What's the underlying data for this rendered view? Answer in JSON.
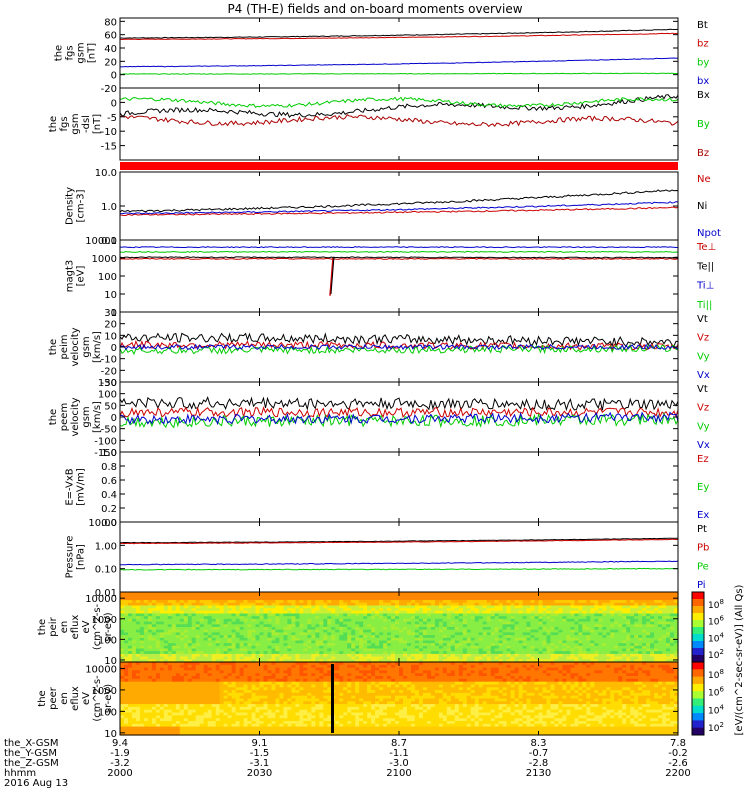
{
  "chart_data": {
    "title": "P4 (TH-E) fields and on-board moments overview",
    "x_ticks": {
      "hhmm": [
        "2000",
        "2030",
        "2100",
        "2130",
        "2200"
      ],
      "the_X-GSM": [
        "9.4",
        "9.1",
        "8.7",
        "8.3",
        "7.8"
      ],
      "the_Y-GSM": [
        "-1.9",
        "-1.5",
        "-1.1",
        "-0.7",
        "-0.2"
      ],
      "the_Z-GSM": [
        "-3.2",
        "-3.1",
        "-3.0",
        "-2.8",
        "-2.6"
      ]
    },
    "footer_labels": [
      "the_X-GSM",
      "the_Y-GSM",
      "the_Z-GSM",
      "hhmm",
      "2016 Aug 13"
    ],
    "panels": [
      {
        "type": "line",
        "ylabel": [
          "the",
          "fgs",
          "gsm",
          "[nT]"
        ],
        "ylim": [
          -20,
          85
        ],
        "yticks": [
          "80",
          "60",
          "40",
          "20",
          "0",
          "-20"
        ],
        "ytick_values": [
          80,
          60,
          40,
          20,
          0,
          -20
        ],
        "log": false,
        "series": [
          {
            "name": "Bt",
            "color": "#000000",
            "start": 55,
            "end": 68,
            "noise": 0.5
          },
          {
            "name": "bz",
            "color": "#cc0000",
            "start": 53,
            "end": 62,
            "noise": 0.4
          },
          {
            "name": "by",
            "color": "#00cc00",
            "start": 1,
            "end": 2,
            "noise": 0.4
          },
          {
            "name": "bx",
            "color": "#0000cc",
            "start": 12,
            "end": 25,
            "noise": 0.4
          }
        ]
      },
      {
        "type": "line",
        "ylabel": [
          "the",
          "fgs",
          "gsm",
          "-dsl",
          "[nT]"
        ],
        "ylim": [
          -20,
          5
        ],
        "yticks": [
          "0",
          "-5",
          "-10",
          "-15"
        ],
        "ytick_values": [
          0,
          -5,
          -10,
          -15
        ],
        "log": false,
        "series": [
          {
            "name": "Bx",
            "color": "#000000",
            "start": -4,
            "end": 1,
            "noise": 0.8
          },
          {
            "name": "By",
            "color": "#00cc00",
            "start": 0,
            "end": 0,
            "noise": 0.6
          },
          {
            "name": "Bz",
            "color": "#aa0000",
            "start": -6,
            "end": -7,
            "noise": 0.8
          }
        ]
      },
      {
        "type": "line",
        "ylabel": [
          "Density",
          "[cm-3]"
        ],
        "ylim_log": [
          -1,
          1
        ],
        "yticks": [
          "10.0",
          "1.0",
          "0.1"
        ],
        "ytick_values": [
          10,
          1,
          0.1
        ],
        "log": true,
        "series": [
          {
            "name": "Ne",
            "color": "#cc0000",
            "start": 0.55,
            "end": 0.9,
            "noise": 0.04
          },
          {
            "name": "Ni",
            "color": "#000000",
            "start": 0.7,
            "end": 3.0,
            "noise": 0.06
          },
          {
            "name": "Npot",
            "color": "#0000cc",
            "start": 0.6,
            "end": 1.3,
            "noise": 0.04
          }
        ]
      },
      {
        "type": "line",
        "ylabel": [
          "magt3",
          "[eV]"
        ],
        "ylim_log": [
          0,
          4
        ],
        "yticks": [
          "10000",
          "1000",
          "100",
          "10",
          "1"
        ],
        "ytick_values": [
          10000,
          1000,
          100,
          10,
          1
        ],
        "log": true,
        "series": [
          {
            "name": "Te⊥",
            "color": "#cc0000",
            "start": 900,
            "end": 900,
            "noise": 0.05
          },
          {
            "name": "Te||",
            "color": "#000000",
            "start": 1100,
            "end": 1050,
            "noise": 0.05
          },
          {
            "name": "Ti⊥",
            "color": "#0000cc",
            "start": 4000,
            "end": 4000,
            "noise": 0.05
          },
          {
            "name": "Ti||",
            "color": "#00cc00",
            "start": 2200,
            "end": 2200,
            "noise": 0.05
          }
        ]
      },
      {
        "type": "line",
        "ylabel": [
          "the",
          "peim",
          "velocity",
          "gsm",
          "[km/s]"
        ],
        "ylim": [
          -30,
          30
        ],
        "yticks": [
          "30",
          "20",
          "10",
          "0",
          "-10",
          "-20",
          "-30"
        ],
        "ytick_values": [
          30,
          20,
          10,
          0,
          -10,
          -20,
          -30
        ],
        "log": false,
        "series": [
          {
            "name": "Vt",
            "color": "#000000",
            "start": 8,
            "end": 4,
            "noise": 4
          },
          {
            "name": "Vz",
            "color": "#cc0000",
            "start": 2,
            "end": 0,
            "noise": 3
          },
          {
            "name": "Vy",
            "color": "#00cc00",
            "start": -3,
            "end": -1,
            "noise": 3
          },
          {
            "name": "Vx",
            "color": "#0000cc",
            "start": 0,
            "end": 0,
            "noise": 2
          }
        ]
      },
      {
        "type": "line",
        "ylabel": [
          "the",
          "peem",
          "velocity",
          "gsm",
          "[km/s]"
        ],
        "ylim": [
          -150,
          150
        ],
        "yticks": [
          "150",
          "100",
          "50",
          "0",
          "-50",
          "-100",
          "-150"
        ],
        "ytick_values": [
          150,
          100,
          50,
          0,
          -50,
          -100,
          -150
        ],
        "log": false,
        "series": [
          {
            "name": "Vt",
            "color": "#000000",
            "start": 60,
            "end": 50,
            "noise": 25
          },
          {
            "name": "Vz",
            "color": "#cc0000",
            "start": 20,
            "end": 20,
            "noise": 20
          },
          {
            "name": "Vy",
            "color": "#00cc00",
            "start": -20,
            "end": -10,
            "noise": 25
          },
          {
            "name": "Vx",
            "color": "#0000cc",
            "start": -10,
            "end": 0,
            "noise": 20
          }
        ]
      },
      {
        "type": "line",
        "ylabel": [
          "E=-VxB",
          "[mV/m]"
        ],
        "ylim": [
          0,
          1
        ],
        "yticks": [
          "1.0",
          "0.8",
          "0.6",
          "0.4",
          "0.2",
          "0.0"
        ],
        "ytick_values": [
          1,
          0.8,
          0.6,
          0.4,
          0.2,
          0
        ],
        "log": false,
        "series": [
          {
            "name": "Ez",
            "color": "#cc0000",
            "values": []
          },
          {
            "name": "Ey",
            "color": "#00cc00",
            "values": []
          },
          {
            "name": "Ex",
            "color": "#0000cc",
            "values": []
          }
        ]
      },
      {
        "type": "line",
        "ylabel": [
          "Pressure",
          "[nPa]"
        ],
        "ylim_log": [
          -2,
          1
        ],
        "yticks": [
          "10.00",
          "1.00",
          "0.10",
          "0.01"
        ],
        "ytick_values": [
          10,
          1,
          0.1,
          0.01
        ],
        "log": true,
        "series": [
          {
            "name": "Pt",
            "color": "#000000",
            "start": 1.3,
            "end": 2.0,
            "noise": 0.02
          },
          {
            "name": "Pb",
            "color": "#cc0000",
            "start": 1.2,
            "end": 1.8,
            "noise": 0.02
          },
          {
            "name": "Pe",
            "color": "#00cc00",
            "start": 0.09,
            "end": 0.1,
            "noise": 0.03
          },
          {
            "name": "Pi",
            "color": "#0000cc",
            "start": 0.15,
            "end": 0.21,
            "noise": 0.03
          }
        ]
      },
      {
        "type": "heatmap",
        "ylabel": [
          "the",
          "peir",
          "en",
          "eflux",
          "eV",
          "(cm^2-s-",
          "sr-eV)"
        ],
        "ylim_log": [
          0.9,
          4.3
        ],
        "yticks": [
          "10000",
          "1000",
          "100",
          "10"
        ],
        "ytick_values": [
          10000,
          1000,
          100,
          10
        ],
        "colorbar_ticks": [
          "10^8",
          "10^6",
          "10^4",
          "10^2"
        ]
      },
      {
        "type": "heatmap",
        "ylabel": [
          "the",
          "peer",
          "en",
          "eflux",
          "eV",
          "(cm^2-s-",
          "sr-eV)"
        ],
        "ylim_log": [
          0.9,
          4.3
        ],
        "yticks": [
          "10000",
          "1000",
          "100",
          "10"
        ],
        "ytick_values": [
          10000,
          1000,
          100,
          10
        ],
        "colorbar_ticks": [
          "10^8",
          "10^6",
          "10^4",
          "10^2"
        ]
      }
    ],
    "colorbar_label": "[eV/(cm^2-sec-sr-eV)] (All Qs)"
  }
}
